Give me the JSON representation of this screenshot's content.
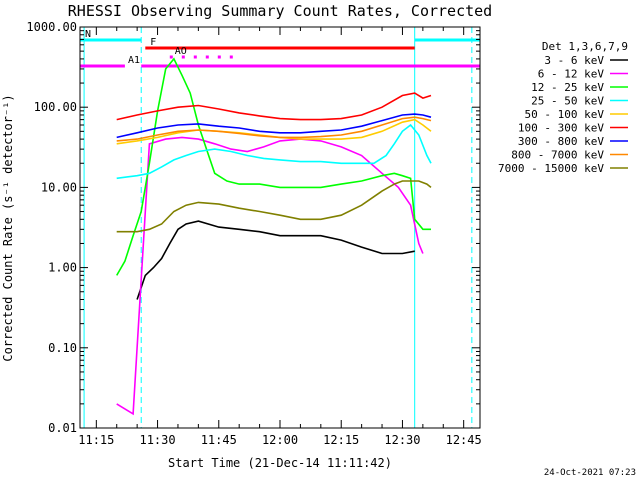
{
  "chart_data": {
    "type": "line",
    "title": "RHESSI Observing Summary Count Rates, Corrected",
    "xlabel": "Start Time (21-Dec-14 11:11:42)",
    "ylabel": "Corrected Count Rate (s⁻¹ detector⁻¹)",
    "y_scale": "log",
    "ylim": [
      0.01,
      1000
    ],
    "xlim": [
      "11:11",
      "12:49"
    ],
    "x_ticks": [
      "11:15",
      "11:30",
      "11:45",
      "12:00",
      "12:15",
      "12:30",
      "12:45"
    ],
    "y_ticks": [
      "0.01",
      "0.10",
      "1.00",
      "10.00",
      "100.00",
      "1000.00"
    ],
    "legend_title": "Det 1,3,6,7,9",
    "legend_position": "right",
    "timestamp": "24-Oct-2021 07:23",
    "series": [
      {
        "name": "3 - 6 keV",
        "color": "#000000",
        "x": [
          "11:25",
          "11:27",
          "11:29",
          "11:31",
          "11:33",
          "11:35",
          "11:37",
          "11:40",
          "11:45",
          "11:50",
          "11:55",
          "12:00",
          "12:05",
          "12:10",
          "12:15",
          "12:20",
          "12:25",
          "12:30",
          "12:33"
        ],
        "y": [
          0.4,
          0.8,
          1.0,
          1.3,
          2.0,
          3.0,
          3.5,
          3.8,
          3.2,
          3.0,
          2.8,
          2.5,
          2.5,
          2.5,
          2.2,
          1.8,
          1.5,
          1.5,
          1.6
        ]
      },
      {
        "name": "6 - 12 keV",
        "color": "#ff00ff",
        "x": [
          "11:20",
          "11:24",
          "11:28",
          "11:32",
          "11:36",
          "11:40",
          "11:44",
          "11:48",
          "11:52",
          "11:56",
          "12:00",
          "12:05",
          "12:10",
          "12:15",
          "12:20",
          "12:25",
          "12:29",
          "12:32",
          "12:34",
          "12:35"
        ],
        "y": [
          0.02,
          0.015,
          35,
          40,
          42,
          40,
          35,
          30,
          28,
          32,
          38,
          40,
          38,
          32,
          25,
          15,
          10,
          6,
          2,
          1.5
        ]
      },
      {
        "name": "12 - 25 keV",
        "color": "#00ff00",
        "x": [
          "11:20",
          "11:22",
          "11:24",
          "11:26",
          "11:28",
          "11:30",
          "11:32",
          "11:34",
          "11:36",
          "11:38",
          "11:40",
          "11:42",
          "11:44",
          "11:47",
          "11:50",
          "11:55",
          "12:00",
          "12:05",
          "12:10",
          "12:15",
          "12:20",
          "12:25",
          "12:28",
          "12:30",
          "12:32",
          "12:33",
          "12:35",
          "12:37"
        ],
        "y": [
          0.8,
          1.2,
          2.5,
          5,
          20,
          90,
          300,
          400,
          250,
          150,
          60,
          30,
          15,
          12,
          11,
          11,
          10,
          10,
          10,
          11,
          12,
          14,
          15,
          14,
          13,
          4,
          3,
          3
        ]
      },
      {
        "name": "25 - 50 keV",
        "color": "#00ffff",
        "x": [
          "11:20",
          "11:25",
          "11:28",
          "11:31",
          "11:34",
          "11:37",
          "11:40",
          "11:44",
          "11:48",
          "11:52",
          "11:56",
          "12:00",
          "12:05",
          "12:10",
          "12:15",
          "12:20",
          "12:23",
          "12:26",
          "12:28",
          "12:30",
          "12:32",
          "12:34",
          "12:36",
          "12:37"
        ],
        "y": [
          13,
          14,
          15,
          18,
          22,
          25,
          28,
          30,
          28,
          25,
          23,
          22,
          21,
          21,
          20,
          20,
          20,
          25,
          35,
          50,
          60,
          45,
          25,
          20
        ]
      },
      {
        "name": "50 - 100 keV",
        "color": "#ffcc00",
        "x": [
          "11:20",
          "11:25",
          "11:30",
          "11:35",
          "11:40",
          "11:45",
          "11:50",
          "11:55",
          "12:00",
          "12:05",
          "12:10",
          "12:15",
          "12:20",
          "12:25",
          "12:30",
          "12:33",
          "12:35",
          "12:37"
        ],
        "y": [
          35,
          38,
          42,
          48,
          52,
          50,
          48,
          45,
          42,
          40,
          40,
          40,
          42,
          50,
          65,
          70,
          60,
          50
        ]
      },
      {
        "name": "100 - 300 keV",
        "color": "#ff0000",
        "x": [
          "11:20",
          "11:25",
          "11:30",
          "11:35",
          "11:40",
          "11:45",
          "11:50",
          "11:55",
          "12:00",
          "12:05",
          "12:10",
          "12:15",
          "12:20",
          "12:25",
          "12:30",
          "12:33",
          "12:35",
          "12:37"
        ],
        "y": [
          70,
          80,
          90,
          100,
          105,
          95,
          85,
          78,
          72,
          70,
          70,
          72,
          80,
          100,
          140,
          150,
          130,
          140
        ]
      },
      {
        "name": "300 - 800 keV",
        "color": "#0000ff",
        "x": [
          "11:20",
          "11:25",
          "11:30",
          "11:35",
          "11:40",
          "11:45",
          "11:50",
          "11:55",
          "12:00",
          "12:05",
          "12:10",
          "12:15",
          "12:20",
          "12:25",
          "12:30",
          "12:33",
          "12:35",
          "12:37"
        ],
        "y": [
          42,
          48,
          55,
          60,
          62,
          58,
          55,
          50,
          48,
          48,
          50,
          52,
          58,
          68,
          80,
          82,
          80,
          75
        ]
      },
      {
        "name": "800 - 7000 keV",
        "color": "#ff8800",
        "x": [
          "11:20",
          "11:25",
          "11:30",
          "11:35",
          "11:40",
          "11:45",
          "11:50",
          "11:55",
          "12:00",
          "12:05",
          "12:10",
          "12:15",
          "12:20",
          "12:25",
          "12:30",
          "12:33",
          "12:35",
          "12:37"
        ],
        "y": [
          38,
          40,
          45,
          50,
          52,
          50,
          47,
          44,
          42,
          42,
          43,
          45,
          50,
          60,
          72,
          75,
          72,
          68
        ]
      },
      {
        "name": "7000 - 15000 keV",
        "color": "#808000",
        "x": [
          "11:20",
          "11:25",
          "11:28",
          "11:31",
          "11:34",
          "11:37",
          "11:40",
          "11:45",
          "11:50",
          "11:55",
          "12:00",
          "12:05",
          "12:10",
          "12:15",
          "12:20",
          "12:25",
          "12:28",
          "12:30",
          "12:32",
          "12:34",
          "12:36",
          "12:37"
        ],
        "y": [
          2.8,
          2.8,
          3.0,
          3.5,
          5,
          6,
          6.5,
          6.2,
          5.5,
          5,
          4.5,
          4,
          4,
          4.5,
          6,
          9,
          11,
          12,
          12,
          12,
          11,
          10
        ]
      }
    ],
    "flags": [
      {
        "label": "N",
        "color": "#00ffff",
        "segments": [
          [
            "11:11",
            "11:26"
          ],
          [
            "12:33",
            "12:49"
          ]
        ]
      },
      {
        "label": "F",
        "color": "#ff0000",
        "segments": [
          [
            "11:27",
            "12:33"
          ]
        ]
      },
      {
        "label": "AO",
        "color": "#ff00ff",
        "dotted": true,
        "segments": [
          [
            "11:33",
            "11:50"
          ]
        ]
      },
      {
        "label": "A1",
        "color": "#ff00ff",
        "segments": [
          [
            "11:11",
            "11:22"
          ],
          [
            "11:26",
            "12:49"
          ]
        ]
      }
    ],
    "vlines": [
      {
        "x": "11:26",
        "color": "#00ffff",
        "dashed": true
      },
      {
        "x": "12:33",
        "color": "#00ffff",
        "dashed": false
      },
      {
        "x": "12:47",
        "color": "#00ffff",
        "dashed": true
      },
      {
        "x": "11:12",
        "color": "#00ffff",
        "dashed": false
      }
    ]
  }
}
